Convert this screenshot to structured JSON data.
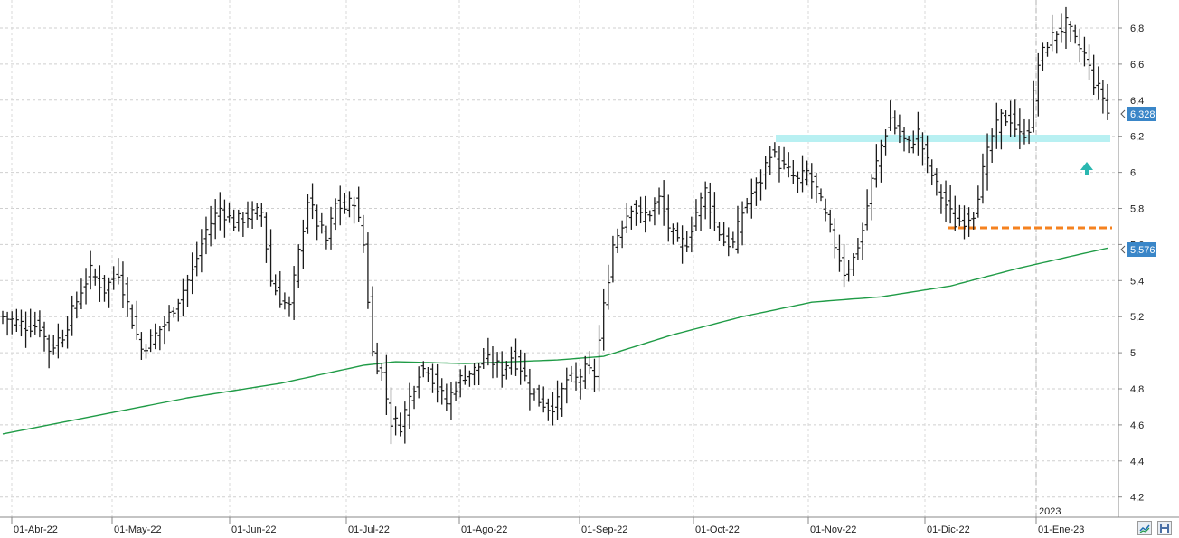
{
  "chart_data": {
    "type": "ohlc",
    "y_ticks": [
      "4,2",
      "4,4",
      "4,6",
      "4,8",
      "5",
      "5,2",
      "5,4",
      "5,6",
      "5,8",
      "6",
      "6,2",
      "6,4",
      "6,6",
      "6,8"
    ],
    "ylim": [
      4.1,
      6.9
    ],
    "x_ticks": [
      "01-Abr-22",
      "01-May-22",
      "01-Jun-22",
      "01-Jul-22",
      "01-Ago-22",
      "01-Sep-22",
      "01-Oct-22",
      "01-Nov-22",
      "01-Dic-22",
      "01-Ene-23"
    ],
    "year_marker": "2023",
    "grid": true,
    "last_price": "6,328",
    "ma_last": "5,576",
    "resistance_level": 6.19,
    "support_level": 5.69,
    "price_anchors": [
      [
        0,
        5.2
      ],
      [
        5,
        5.15
      ],
      [
        8,
        5.15
      ],
      [
        10,
        5.02
      ],
      [
        13,
        5.1
      ],
      [
        17,
        5.35
      ],
      [
        19,
        5.45
      ],
      [
        22,
        5.35
      ],
      [
        25,
        5.45
      ],
      [
        28,
        5.18
      ],
      [
        30,
        5.02
      ],
      [
        33,
        5.1
      ],
      [
        35,
        5.16
      ],
      [
        38,
        5.3
      ],
      [
        41,
        5.45
      ],
      [
        44,
        5.68
      ],
      [
        47,
        5.8
      ],
      [
        50,
        5.72
      ],
      [
        53,
        5.76
      ],
      [
        56,
        5.78
      ],
      [
        58,
        5.4
      ],
      [
        60,
        5.3
      ],
      [
        62,
        5.25
      ],
      [
        64,
        5.55
      ],
      [
        66,
        5.85
      ],
      [
        68,
        5.72
      ],
      [
        70,
        5.62
      ],
      [
        72,
        5.82
      ],
      [
        74,
        5.8
      ],
      [
        76,
        5.85
      ],
      [
        78,
        5.6
      ],
      [
        80,
        5.0
      ],
      [
        82,
        4.88
      ],
      [
        84,
        4.62
      ],
      [
        86,
        4.6
      ],
      [
        88,
        4.75
      ],
      [
        90,
        4.9
      ],
      [
        92,
        4.92
      ],
      [
        94,
        4.8
      ],
      [
        96,
        4.72
      ],
      [
        98,
        4.82
      ],
      [
        100,
        4.88
      ],
      [
        102,
        4.9
      ],
      [
        104,
        4.95
      ],
      [
        106,
        4.95
      ],
      [
        108,
        4.9
      ],
      [
        110,
        4.98
      ],
      [
        112,
        4.92
      ],
      [
        114,
        4.8
      ],
      [
        116,
        4.74
      ],
      [
        118,
        4.7
      ],
      [
        120,
        4.72
      ],
      [
        122,
        4.85
      ],
      [
        124,
        4.85
      ],
      [
        126,
        4.9
      ],
      [
        128,
        4.88
      ],
      [
        130,
        5.25
      ],
      [
        132,
        5.6
      ],
      [
        134,
        5.72
      ],
      [
        136,
        5.82
      ],
      [
        138,
        5.75
      ],
      [
        140,
        5.78
      ],
      [
        142,
        5.85
      ],
      [
        144,
        5.7
      ],
      [
        146,
        5.6
      ],
      [
        148,
        5.62
      ],
      [
        150,
        5.78
      ],
      [
        152,
        5.9
      ],
      [
        154,
        5.72
      ],
      [
        156,
        5.62
      ],
      [
        158,
        5.6
      ],
      [
        160,
        5.78
      ],
      [
        162,
        5.88
      ],
      [
        164,
        5.96
      ],
      [
        166,
        6.12
      ],
      [
        168,
        6.05
      ],
      [
        170,
        6.0
      ],
      [
        172,
        5.95
      ],
      [
        174,
        6.0
      ],
      [
        176,
        5.9
      ],
      [
        178,
        5.75
      ],
      [
        180,
        5.6
      ],
      [
        182,
        5.45
      ],
      [
        184,
        5.52
      ],
      [
        186,
        5.68
      ],
      [
        188,
        5.95
      ],
      [
        190,
        6.15
      ],
      [
        192,
        6.3
      ],
      [
        194,
        6.2
      ],
      [
        196,
        6.15
      ],
      [
        198,
        6.22
      ],
      [
        200,
        6.05
      ],
      [
        202,
        5.92
      ],
      [
        204,
        5.82
      ],
      [
        206,
        5.72
      ],
      [
        208,
        5.74
      ],
      [
        210,
        5.78
      ],
      [
        212,
        6.0
      ],
      [
        214,
        6.2
      ],
      [
        216,
        6.3
      ],
      [
        218,
        6.3
      ],
      [
        220,
        6.2
      ],
      [
        222,
        6.25
      ],
      [
        224,
        6.6
      ],
      [
        226,
        6.72
      ],
      [
        228,
        6.78
      ],
      [
        230,
        6.82
      ],
      [
        232,
        6.72
      ],
      [
        234,
        6.65
      ],
      [
        236,
        6.5
      ],
      [
        238,
        6.42
      ],
      [
        239,
        6.328
      ]
    ],
    "ma_anchors": [
      [
        0,
        4.55
      ],
      [
        20,
        4.65
      ],
      [
        40,
        4.75
      ],
      [
        60,
        4.83
      ],
      [
        78,
        4.93
      ],
      [
        85,
        4.95
      ],
      [
        100,
        4.94
      ],
      [
        120,
        4.96
      ],
      [
        130,
        4.98
      ],
      [
        145,
        5.1
      ],
      [
        160,
        5.2
      ],
      [
        175,
        5.28
      ],
      [
        190,
        5.31
      ],
      [
        205,
        5.37
      ],
      [
        220,
        5.47
      ],
      [
        232,
        5.54
      ],
      [
        239,
        5.58
      ]
    ]
  },
  "ui": {
    "colors": {
      "bars": "#1a1a1a",
      "moving_average": "#1f9b46",
      "resistance_band": "#b8f0f2",
      "support_line": "#f5821f",
      "arrow": "#2ab7b0",
      "price_label_bg": "#3a86c8",
      "grid": "#cccccc"
    },
    "icons": [
      "grid-icon",
      "save-icon"
    ]
  }
}
